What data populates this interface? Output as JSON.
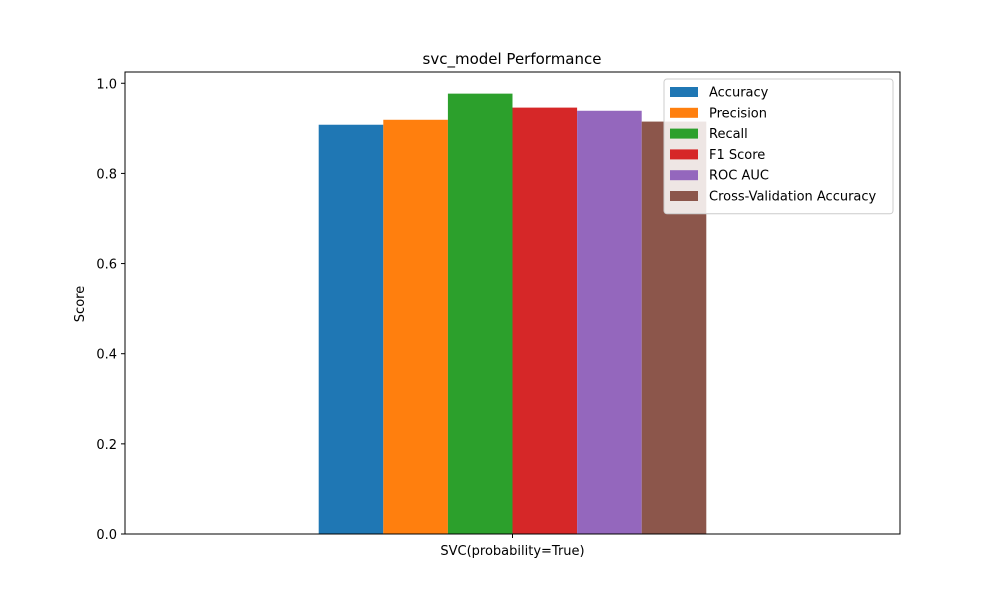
{
  "chart_data": {
    "type": "bar",
    "title": "svc_model Performance",
    "xlabel": "",
    "ylabel": "Score",
    "categories": [
      "SVC(probability=True)"
    ],
    "ylim": [
      0,
      1.025
    ],
    "yticks": [
      "0.0",
      "0.2",
      "0.4",
      "0.6",
      "0.8",
      "1.0"
    ],
    "series": [
      {
        "name": "Accuracy",
        "values": [
          0.908
        ],
        "color": "#1f77b4"
      },
      {
        "name": "Precision",
        "values": [
          0.919
        ],
        "color": "#ff7f0e"
      },
      {
        "name": "Recall",
        "values": [
          0.977
        ],
        "color": "#2ca02c"
      },
      {
        "name": "F1 Score",
        "values": [
          0.946
        ],
        "color": "#d62728"
      },
      {
        "name": "ROC AUC",
        "values": [
          0.939
        ],
        "color": "#9467bd"
      },
      {
        "name": "Cross-Validation Accuracy",
        "values": [
          0.915
        ],
        "color": "#8c564b"
      }
    ],
    "grid": false,
    "legend_position": "top-right"
  }
}
